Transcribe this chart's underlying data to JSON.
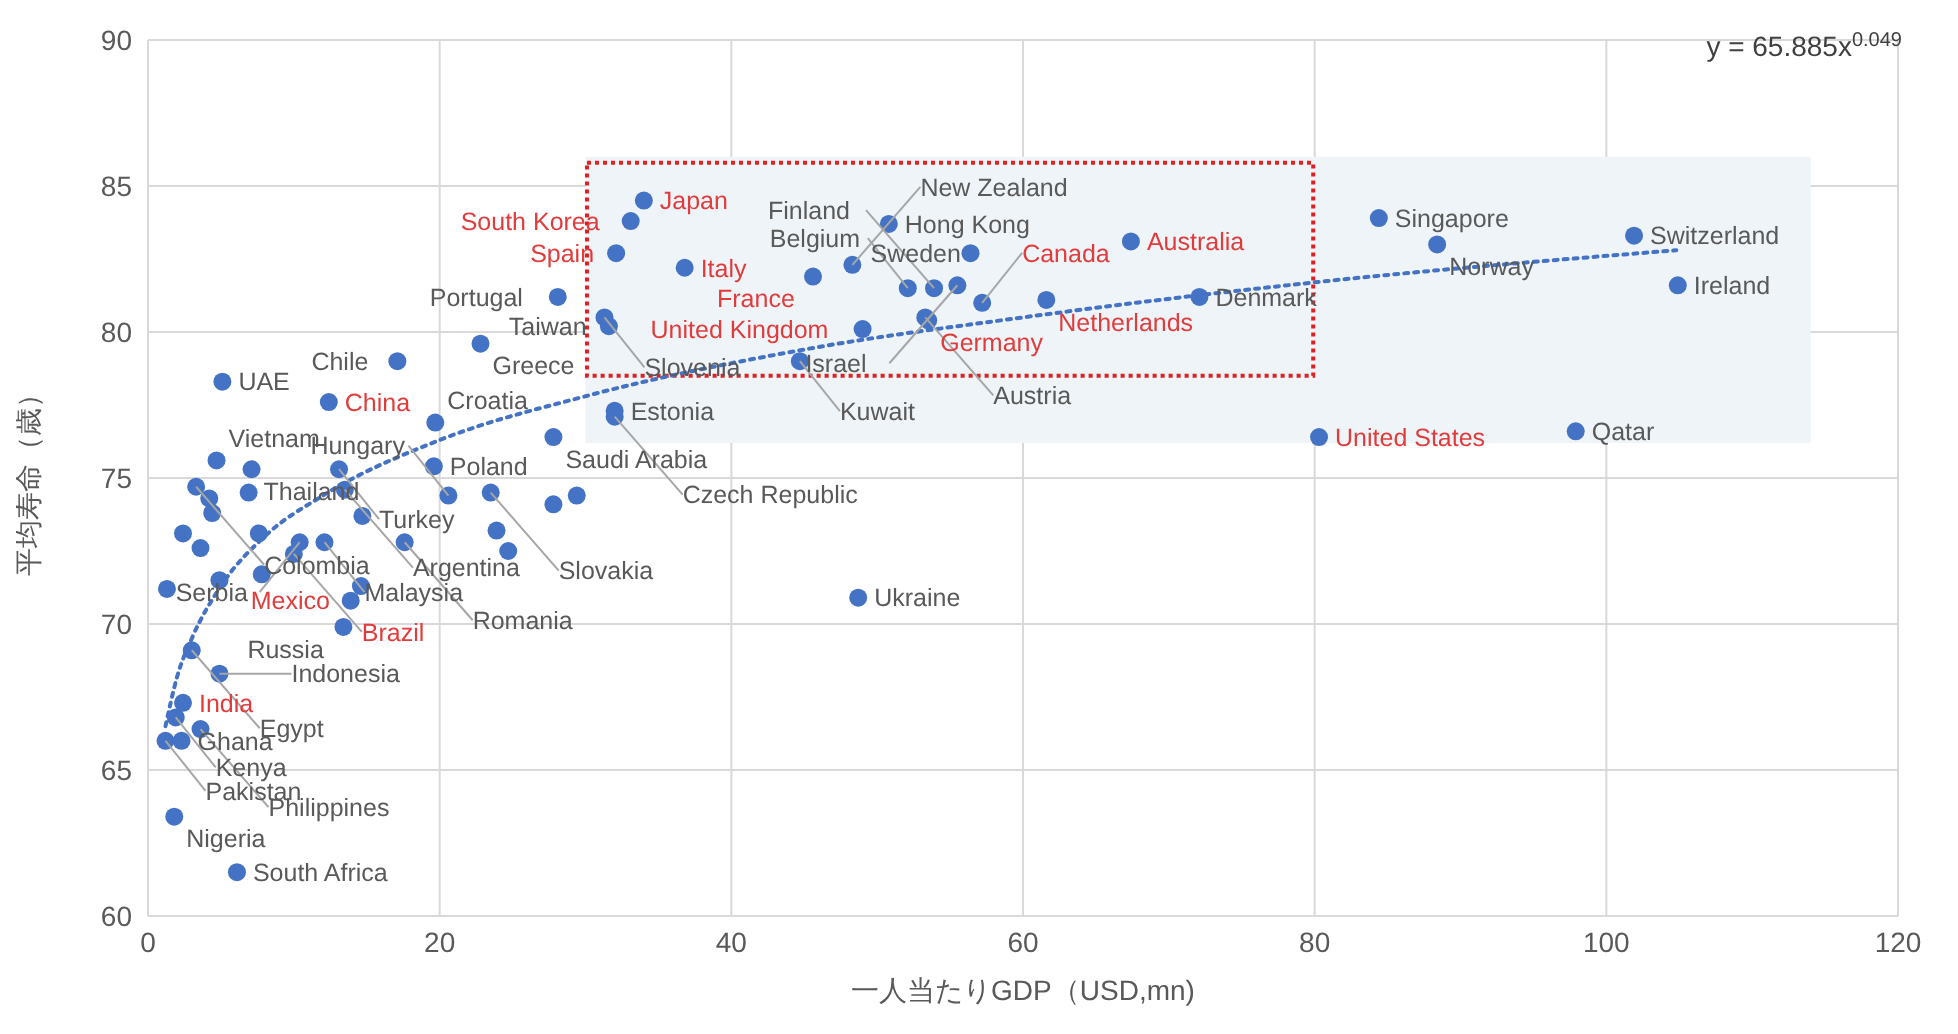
{
  "chart_data": {
    "type": "scatter",
    "xlabel": "一人当たりGDP（USD,mn)",
    "ylabel": "平均寿命（歳）",
    "xlim": [
      0,
      120
    ],
    "xticks": [
      0,
      20,
      40,
      60,
      80,
      100,
      120
    ],
    "ylim": [
      60,
      90
    ],
    "yticks": [
      60,
      65,
      70,
      75,
      80,
      85,
      90
    ],
    "grid": true,
    "marker": "circle",
    "annotations": [
      "y = 65.885x$^{0.049}$"
    ],
    "series": [
      {
        "color": "#4472c4",
        "x": [
          34.0,
          33.1,
          32.1,
          36.8,
          45.6,
          49.0,
          53.5,
          57.2,
          61.6,
          67.4,
          80.3,
          12.4,
          10.0,
          13.9,
          2.4
        ],
        "values": [
          84.5,
          83.8,
          82.7,
          82.2,
          81.9,
          80.1,
          80.4,
          81.0,
          81.1,
          83.1,
          76.4,
          77.6,
          72.4,
          70.8,
          67.3
        ],
        "value_labels": [
          "Japan",
          "South Korea",
          "Spain",
          "Italy",
          "France",
          "United Kingdom",
          "Germany",
          "Canada",
          "Netherlands",
          "Australia",
          "United States",
          "China",
          "Brazil",
          "Mexico",
          "India"
        ]
      },
      {
        "color": "#4472c4",
        "x": [
          28.1,
          31.3,
          31.6,
          48.3,
          50.8,
          56.4,
          52.1,
          53.9,
          55.5,
          72.1,
          53.3,
          44.7,
          84.4,
          88.4,
          101.9,
          104.9,
          97.9,
          48.7,
          22.8,
          17.1,
          5.1,
          19.7,
          27.8,
          32.0,
          32.0,
          4.7,
          7.1,
          13.1,
          19.6,
          3.3,
          13.5,
          20.6,
          23.5,
          10.4,
          17.6,
          12.1,
          13.4,
          3.0,
          4.9,
          1.9,
          3.6,
          1.2,
          2.3,
          1.8,
          6.1,
          6.9,
          4.2,
          4.4,
          27.8,
          29.4,
          14.7,
          7.6,
          2.4,
          3.6,
          23.9,
          24.7,
          1.3,
          4.9,
          7.8,
          14.6
        ],
        "values": [
          81.2,
          80.5,
          80.2,
          82.3,
          83.7,
          82.7,
          81.5,
          81.5,
          81.6,
          81.2,
          80.5,
          79.0,
          83.9,
          83.0,
          83.3,
          81.6,
          76.6,
          70.9,
          79.6,
          79.0,
          78.3,
          76.9,
          76.4,
          77.3,
          77.1,
          75.6,
          75.3,
          75.3,
          75.4,
          74.7,
          74.6,
          74.4,
          74.5,
          72.8,
          72.8,
          72.8,
          69.9,
          69.1,
          68.3,
          66.8,
          66.4,
          66.0,
          66.0,
          63.4,
          61.5,
          74.5,
          74.3,
          73.8,
          74.1,
          74.4,
          73.7,
          73.1,
          73.1,
          72.6,
          73.2,
          72.5,
          71.2,
          71.5,
          71.7,
          71.3
        ],
        "value_labels": [
          "Portugal",
          "Slovenia",
          "Taiwan",
          "New Zealand",
          "Hong Kong",
          "Sweden",
          "Belgium",
          "Finland",
          "Israel",
          "Denmark",
          "Austria",
          "Kuwait",
          "Singapore",
          "Norway",
          "Switzerland",
          "Ireland",
          "Qatar",
          "Ukraine",
          "Greece",
          "Chile",
          "UAE",
          "Croatia",
          "Saudi Arabia",
          "Estonia",
          "Czech Republic",
          "Vietnam",
          "Thailand",
          "Turkey",
          "Poland",
          "Colombia",
          "Argentina",
          "Hungary",
          "Slovakia",
          "Serbia",
          "Romania",
          "Malaysia",
          "Russia",
          "Egypt",
          "Indonesia",
          "Kenya",
          "Philippines",
          "Pakistan",
          "Ghana",
          "Nigeria",
          "South Africa",
          null,
          null,
          null,
          null,
          null,
          null,
          null,
          null,
          null,
          null,
          null,
          null,
          null,
          null,
          null
        ]
      },
      {
        "type": "line",
        "color": "#4472c4",
        "line_style": "dotted",
        "marker": "none",
        "x": [
          1.2,
          2,
          3,
          5,
          8,
          12,
          20,
          30,
          45,
          60,
          80,
          104.8
        ],
        "values": [
          66.5,
          68.2,
          69.5,
          71.3,
          73.0,
          74.4,
          76.3,
          77.8,
          79.4,
          80.5,
          81.7,
          82.8
        ]
      }
    ]
  }
}
